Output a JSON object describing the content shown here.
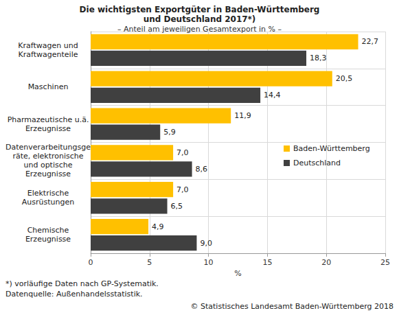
{
  "chart_data": {
    "type": "bar",
    "orientation": "horizontal",
    "title": "Die wichtigsten Exportgüter in Baden-Württemberg\nund Deutschland 2017*)",
    "subtitle": "– Anteil am jeweiligen Gesamtexport in % –",
    "x_label": "%",
    "categories": [
      "Kraftwagen und\nKraftwagenteile",
      "Maschinen",
      "Pharmazeutische u.ä.\nErzeugnisse",
      "Datenverarbeitungsge\nräte, elektronische\nund optische\nErzeugnisse",
      "Elektrische\nAusrüstungen",
      "Chemische\nErzeugnisse"
    ],
    "series": [
      {
        "name": "Baden-Württemberg",
        "color": "#ffc000",
        "values": [
          22.7,
          20.5,
          11.9,
          7.0,
          7.0,
          4.9
        ],
        "value_labels": [
          "22,7",
          "20,5",
          "11,9",
          "7,0",
          "7,0",
          "4,9"
        ]
      },
      {
        "name": "Deutschland",
        "color": "#404040",
        "values": [
          18.3,
          14.4,
          5.9,
          8.6,
          6.5,
          9.0
        ],
        "value_labels": [
          "18,3",
          "14,4",
          "5,9",
          "8,6",
          "6,5",
          "9,0"
        ]
      }
    ],
    "xlim": [
      0,
      25
    ],
    "xticks": [
      0,
      5,
      10,
      15,
      20,
      25
    ],
    "grid": true,
    "legend": "right",
    "data_labels": true,
    "annotations": [
      "*) vorläufige Daten nach GP-Systematik.",
      "Datenquelle: Außenhandelsstatistik.",
      "© Statistisches Landesamt Baden-Württemberg 2018"
    ]
  }
}
